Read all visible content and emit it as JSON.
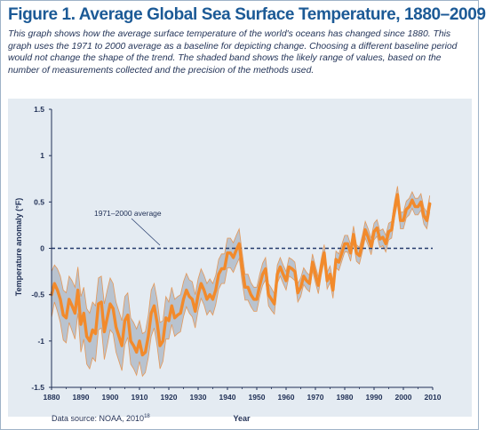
{
  "figure": {
    "title": "Figure 1. Average Global Sea Surface Temperature, 1880–2009",
    "caption": "This graph shows how the average surface temperature of the world's oceans has changed since 1880. This graph uses the 1971 to 2000 average as a baseline for depicting change. Choosing a different baseline period would not change the shape of the trend. The shaded band shows the likely range of values, based on the number of measurements collected and the precision of the methods used.",
    "source": "Data source: NOAA, 2010",
    "source_sup": "18"
  },
  "colors": {
    "title": "#1c5a96",
    "line": "#f28a2b",
    "band": "#b9c3cf",
    "band_edge": "#e98a3a",
    "baseline": "#233a6b",
    "panel": "#e4ebf2"
  },
  "chart_data": {
    "type": "line",
    "title": "Figure 1. Average Global Sea Surface Temperature, 1880–2009",
    "xlabel": "Year",
    "ylabel": "Temperature anomaly (°F)",
    "xlim": [
      1880,
      2010
    ],
    "ylim": [
      -1.5,
      1.5
    ],
    "x_ticks": [
      "1880",
      "1890",
      "1900",
      "1910",
      "1920",
      "1930",
      "1940",
      "1950",
      "1960",
      "1970",
      "1980",
      "1990",
      "2000",
      "2010"
    ],
    "y_ticks": [
      "1.5",
      "1",
      "0.5",
      "0",
      "-0.5",
      "-1",
      "-1.5"
    ],
    "grid": false,
    "baseline": {
      "value": 0,
      "label": "1971–2000 average"
    },
    "series": [
      {
        "x": [
          1880,
          1881,
          1882,
          1883,
          1884,
          1885,
          1886,
          1887,
          1888,
          1889,
          1890,
          1891,
          1892,
          1893,
          1894,
          1895,
          1896,
          1897,
          1898,
          1899,
          1900,
          1901,
          1902,
          1903,
          1904,
          1905,
          1906,
          1907,
          1908,
          1909,
          1910,
          1911,
          1912,
          1913,
          1914,
          1915,
          1916,
          1917,
          1918,
          1919,
          1920,
          1921,
          1922,
          1923,
          1924,
          1925,
          1926,
          1927,
          1928,
          1929,
          1930,
          1931,
          1932,
          1933,
          1934,
          1935,
          1936,
          1937,
          1938,
          1939,
          1940,
          1941,
          1942,
          1943,
          1944,
          1945,
          1946,
          1947,
          1948,
          1949,
          1950,
          1951,
          1952,
          1953,
          1954,
          1955,
          1956,
          1957,
          1958,
          1959,
          1960,
          1961,
          1962,
          1963,
          1964,
          1965,
          1966,
          1967,
          1968,
          1969,
          1970,
          1971,
          1972,
          1973,
          1974,
          1975,
          1976,
          1977,
          1978,
          1979,
          1980,
          1981,
          1982,
          1983,
          1984,
          1985,
          1986,
          1987,
          1988,
          1989,
          1990,
          1991,
          1992,
          1993,
          1994,
          1995,
          1996,
          1997,
          1998,
          1999,
          2000,
          2001,
          2002,
          2003,
          2004,
          2005,
          2006,
          2007,
          2008,
          2009
        ],
        "values": [
          -0.5,
          -0.38,
          -0.45,
          -0.55,
          -0.72,
          -0.75,
          -0.55,
          -0.62,
          -0.7,
          -0.45,
          -0.82,
          -0.7,
          -0.95,
          -1.0,
          -0.88,
          -0.92,
          -0.6,
          -0.58,
          -0.9,
          -0.75,
          -0.6,
          -0.65,
          -0.85,
          -0.95,
          -1.05,
          -0.78,
          -0.72,
          -1.0,
          -1.05,
          -1.12,
          -1.0,
          -1.15,
          -1.12,
          -0.95,
          -0.7,
          -0.62,
          -0.8,
          -1.05,
          -1.0,
          -0.75,
          -0.78,
          -0.62,
          -0.75,
          -0.72,
          -0.7,
          -0.55,
          -0.45,
          -0.52,
          -0.55,
          -0.68,
          -0.5,
          -0.38,
          -0.45,
          -0.55,
          -0.5,
          -0.55,
          -0.45,
          -0.28,
          -0.22,
          -0.22,
          -0.05,
          -0.05,
          -0.1,
          -0.02,
          0.05,
          -0.2,
          -0.42,
          -0.42,
          -0.5,
          -0.55,
          -0.55,
          -0.4,
          -0.28,
          -0.22,
          -0.5,
          -0.55,
          -0.6,
          -0.28,
          -0.2,
          -0.28,
          -0.35,
          -0.2,
          -0.22,
          -0.25,
          -0.48,
          -0.42,
          -0.3,
          -0.35,
          -0.38,
          -0.15,
          -0.28,
          -0.4,
          -0.2,
          -0.05,
          -0.35,
          -0.28,
          -0.45,
          -0.12,
          -0.15,
          -0.05,
          0.05,
          0.05,
          -0.05,
          0.15,
          -0.05,
          -0.08,
          0.05,
          0.2,
          0.12,
          0.02,
          0.18,
          0.22,
          0.1,
          0.12,
          0.05,
          0.18,
          0.2,
          0.42,
          0.58,
          0.3,
          0.3,
          0.42,
          0.45,
          0.52,
          0.45,
          0.45,
          0.5,
          0.35,
          0.3,
          0.48
        ],
        "upper": [
          -0.25,
          -0.18,
          -0.22,
          -0.3,
          -0.45,
          -0.48,
          -0.3,
          -0.35,
          -0.42,
          -0.2,
          -0.52,
          -0.42,
          -0.65,
          -0.7,
          -0.58,
          -0.62,
          -0.32,
          -0.3,
          -0.6,
          -0.45,
          -0.32,
          -0.38,
          -0.58,
          -0.68,
          -0.78,
          -0.52,
          -0.48,
          -0.75,
          -0.8,
          -0.87,
          -0.78,
          -0.92,
          -0.9,
          -0.72,
          -0.45,
          -0.38,
          -0.55,
          -0.8,
          -0.78,
          -0.52,
          -0.58,
          -0.42,
          -0.55,
          -0.52,
          -0.5,
          -0.36,
          -0.27,
          -0.34,
          -0.36,
          -0.5,
          -0.33,
          -0.22,
          -0.29,
          -0.38,
          -0.33,
          -0.38,
          -0.29,
          -0.12,
          -0.06,
          -0.06,
          0.11,
          0.11,
          0.06,
          0.14,
          0.21,
          -0.04,
          -0.28,
          -0.28,
          -0.37,
          -0.42,
          -0.42,
          -0.28,
          -0.16,
          -0.1,
          -0.38,
          -0.43,
          -0.49,
          -0.18,
          -0.1,
          -0.18,
          -0.25,
          -0.1,
          -0.12,
          -0.15,
          -0.38,
          -0.32,
          -0.21,
          -0.26,
          -0.29,
          -0.06,
          -0.19,
          -0.31,
          -0.11,
          0.04,
          -0.26,
          -0.19,
          -0.36,
          -0.03,
          -0.06,
          0.04,
          0.14,
          0.14,
          0.04,
          0.24,
          0.04,
          0.01,
          0.14,
          0.29,
          0.21,
          0.11,
          0.27,
          0.31,
          0.19,
          0.21,
          0.14,
          0.27,
          0.29,
          0.51,
          0.67,
          0.39,
          0.39,
          0.51,
          0.54,
          0.61,
          0.54,
          0.54,
          0.59,
          0.44,
          0.39,
          0.57
        ],
        "lower": [
          -0.75,
          -0.58,
          -0.68,
          -0.8,
          -0.99,
          -1.02,
          -0.8,
          -0.89,
          -0.98,
          -0.7,
          -1.12,
          -0.98,
          -1.25,
          -1.3,
          -1.18,
          -1.22,
          -0.88,
          -0.86,
          -1.2,
          -1.05,
          -0.88,
          -0.92,
          -1.12,
          -1.22,
          -1.32,
          -1.04,
          -0.96,
          -1.25,
          -1.3,
          -1.37,
          -1.22,
          -1.38,
          -1.34,
          -1.18,
          -0.95,
          -0.86,
          -1.05,
          -1.3,
          -1.22,
          -0.98,
          -0.98,
          -0.82,
          -0.95,
          -0.92,
          -0.9,
          -0.74,
          -0.63,
          -0.7,
          -0.74,
          -0.86,
          -0.67,
          -0.54,
          -0.61,
          -0.72,
          -0.67,
          -0.72,
          -0.61,
          -0.44,
          -0.38,
          -0.38,
          -0.21,
          -0.21,
          -0.26,
          -0.18,
          -0.11,
          -0.36,
          -0.56,
          -0.56,
          -0.63,
          -0.68,
          -0.68,
          -0.52,
          -0.4,
          -0.34,
          -0.62,
          -0.67,
          -0.71,
          -0.38,
          -0.3,
          -0.38,
          -0.45,
          -0.3,
          -0.32,
          -0.35,
          -0.58,
          -0.52,
          -0.39,
          -0.44,
          -0.47,
          -0.24,
          -0.37,
          -0.49,
          -0.29,
          -0.14,
          -0.44,
          -0.37,
          -0.54,
          -0.21,
          -0.24,
          -0.14,
          -0.04,
          -0.04,
          -0.14,
          0.06,
          -0.14,
          -0.17,
          -0.04,
          0.11,
          0.03,
          -0.07,
          0.09,
          0.13,
          0.01,
          0.03,
          -0.04,
          0.09,
          0.11,
          0.33,
          0.49,
          0.21,
          0.21,
          0.33,
          0.36,
          0.43,
          0.36,
          0.36,
          0.41,
          0.26,
          0.21,
          0.39
        ]
      }
    ]
  }
}
